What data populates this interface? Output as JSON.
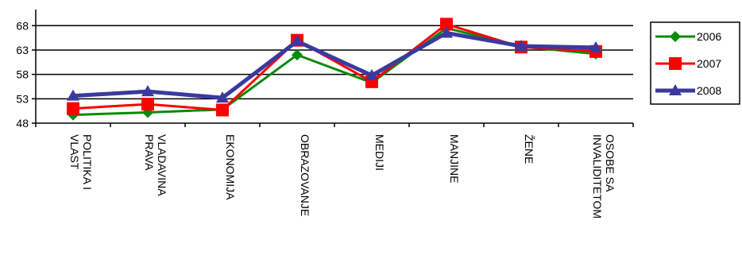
{
  "chart_data": {
    "type": "line",
    "categories": [
      [
        "POLITIKA I",
        "VLAST"
      ],
      [
        "VLADAVINA",
        "PRAVA"
      ],
      [
        "EKONOMIJA"
      ],
      [
        "OBRAZOVANJE"
      ],
      [
        "MEDIJI"
      ],
      [
        "MANJINE"
      ],
      [
        "ŽENE"
      ],
      [
        "OSOBE SA",
        "INVALIDITETOM"
      ]
    ],
    "y_ticks": [
      "48",
      "53",
      "58",
      "63",
      "68"
    ],
    "ylim": [
      48,
      70
    ],
    "grid": "horizontal",
    "legend_position": "right",
    "series": [
      {
        "name": "2006",
        "color": "#0a8a0a",
        "marker": "diamond",
        "values": [
          49.7,
          50.2,
          50.8,
          62.0,
          56.3,
          67.5,
          63.7,
          62.2
        ]
      },
      {
        "name": "2007",
        "color": "#ff0000",
        "marker": "square",
        "values": [
          51.0,
          51.9,
          50.7,
          65.0,
          56.5,
          68.3,
          63.6,
          62.7
        ]
      },
      {
        "name": "2008",
        "color": "#3a3a9e",
        "marker": "triangle",
        "values": [
          53.6,
          54.5,
          53.2,
          64.8,
          57.8,
          66.5,
          63.8,
          63.5
        ]
      }
    ]
  }
}
